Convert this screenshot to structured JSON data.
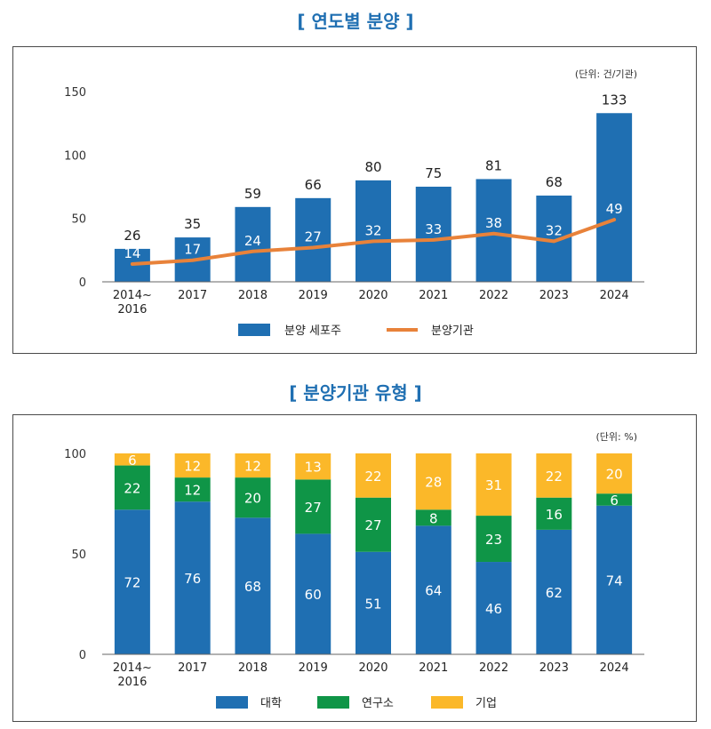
{
  "chart_data": [
    {
      "type": "bar",
      "title": "[ 연도별 분양 ]",
      "unit": "(단위: 건/기관)",
      "categories": [
        "2014~\n2016",
        "2017",
        "2018",
        "2019",
        "2020",
        "2021",
        "2022",
        "2023",
        "2024"
      ],
      "ylim": [
        0,
        150
      ],
      "yticks": [
        0,
        50,
        100,
        150
      ],
      "series": [
        {
          "name": "분양 세포주",
          "type": "bar",
          "color": "#1f6fb2",
          "values": [
            26,
            35,
            59,
            66,
            80,
            75,
            81,
            68,
            133
          ]
        },
        {
          "name": "분양기관",
          "type": "line",
          "color": "#e8823a",
          "values": [
            14,
            17,
            24,
            27,
            32,
            33,
            38,
            32,
            49
          ]
        }
      ]
    },
    {
      "type": "stacked-bar",
      "title": "[ 분양기관 유형 ]",
      "unit": "(단위: %)",
      "categories": [
        "2014~\n2016",
        "2017",
        "2018",
        "2019",
        "2020",
        "2021",
        "2022",
        "2023",
        "2024"
      ],
      "ylim": [
        0,
        100
      ],
      "yticks": [
        0,
        50,
        100
      ],
      "series": [
        {
          "name": "대학",
          "color": "#1f6fb2",
          "values": [
            72,
            76,
            68,
            60,
            51,
            64,
            46,
            62,
            74
          ]
        },
        {
          "name": "연구소",
          "color": "#0f9547",
          "values": [
            22,
            12,
            20,
            27,
            27,
            8,
            23,
            16,
            6
          ]
        },
        {
          "name": "기업",
          "color": "#fbb829",
          "values": [
            6,
            12,
            12,
            13,
            22,
            28,
            31,
            22,
            20
          ]
        }
      ]
    }
  ]
}
